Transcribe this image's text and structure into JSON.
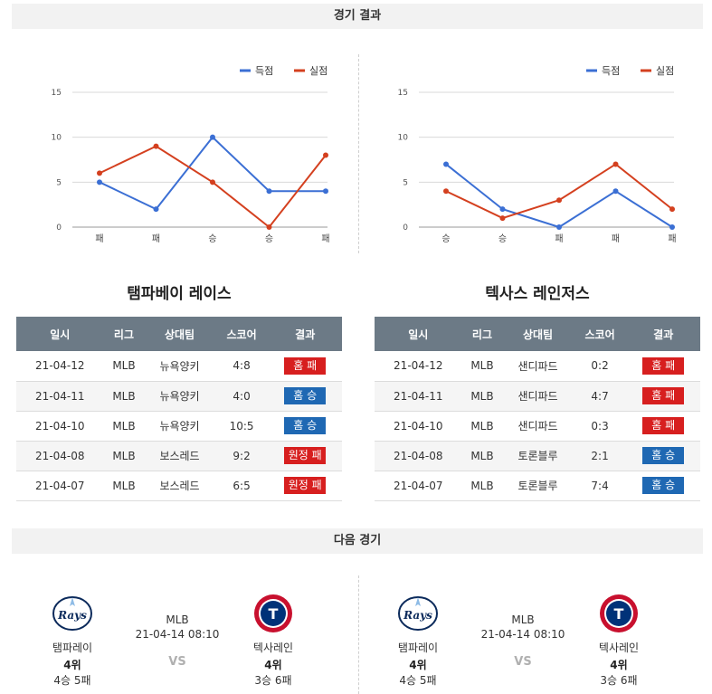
{
  "sections": {
    "results_title": "경기 결과",
    "next_title": "다음 경기"
  },
  "legend": {
    "scored": "득점",
    "allowed": "실점"
  },
  "colors": {
    "scored": "#3b6fd4",
    "allowed": "#d4401f",
    "win": "#1f68b3",
    "loss": "#d71f1f",
    "header": "#6c7a86"
  },
  "chart_data": [
    {
      "type": "line",
      "categories": [
        "패",
        "패",
        "승",
        "승",
        "패"
      ],
      "ylim": [
        0,
        15
      ],
      "yticks": [
        0,
        5,
        10,
        15
      ],
      "grid": true,
      "legend_position": "top-right",
      "series": [
        {
          "name": "득점",
          "values": [
            5,
            2,
            10,
            4,
            4
          ]
        },
        {
          "name": "실점",
          "values": [
            6,
            9,
            5,
            0,
            8
          ]
        }
      ]
    },
    {
      "type": "line",
      "categories": [
        "승",
        "승",
        "패",
        "패",
        "패"
      ],
      "ylim": [
        0,
        15
      ],
      "yticks": [
        0,
        5,
        10,
        15
      ],
      "grid": true,
      "legend_position": "top-right",
      "series": [
        {
          "name": "득점",
          "values": [
            7,
            2,
            0,
            4,
            0
          ]
        },
        {
          "name": "실점",
          "values": [
            4,
            1,
            3,
            7,
            2
          ]
        }
      ]
    }
  ],
  "table_headers": [
    "일시",
    "리그",
    "상대팀",
    "스코어",
    "결과"
  ],
  "teams": [
    {
      "title": "탬파베이 레이스",
      "rows": [
        {
          "date": "21-04-12",
          "league": "MLB",
          "opponent": "뉴욕양키",
          "score": "4:8",
          "result": "홈 패",
          "win": false
        },
        {
          "date": "21-04-11",
          "league": "MLB",
          "opponent": "뉴욕양키",
          "score": "4:0",
          "result": "홈 승",
          "win": true
        },
        {
          "date": "21-04-10",
          "league": "MLB",
          "opponent": "뉴욕양키",
          "score": "10:5",
          "result": "홈 승",
          "win": true
        },
        {
          "date": "21-04-08",
          "league": "MLB",
          "opponent": "보스레드",
          "score": "9:2",
          "result": "원정 패",
          "win": false
        },
        {
          "date": "21-04-07",
          "league": "MLB",
          "opponent": "보스레드",
          "score": "6:5",
          "result": "원정 패",
          "win": false
        }
      ]
    },
    {
      "title": "텍사스 레인저스",
      "rows": [
        {
          "date": "21-04-12",
          "league": "MLB",
          "opponent": "샌디파드",
          "score": "0:2",
          "result": "홈 패",
          "win": false
        },
        {
          "date": "21-04-11",
          "league": "MLB",
          "opponent": "샌디파드",
          "score": "4:7",
          "result": "홈 패",
          "win": false
        },
        {
          "date": "21-04-10",
          "league": "MLB",
          "opponent": "샌디파드",
          "score": "0:3",
          "result": "홈 패",
          "win": false
        },
        {
          "date": "21-04-08",
          "league": "MLB",
          "opponent": "토론블루",
          "score": "2:1",
          "result": "홈 승",
          "win": true
        },
        {
          "date": "21-04-07",
          "league": "MLB",
          "opponent": "토론블루",
          "score": "7:4",
          "result": "홈 승",
          "win": true
        }
      ]
    }
  ],
  "next_games": [
    {
      "league": "MLB",
      "datetime": "21-04-14 08:10",
      "vs": "VS",
      "home": {
        "name": "탬파레이",
        "rank": "4위",
        "record": "4승 5패",
        "logo_icon": "rays-logo-icon",
        "logo_text": "Rays"
      },
      "away": {
        "name": "텍사레인",
        "rank": "4위",
        "record": "3승 6패",
        "logo_icon": "rangers-logo-icon",
        "logo_text": "T"
      }
    },
    {
      "league": "MLB",
      "datetime": "21-04-14 08:10",
      "vs": "VS",
      "home": {
        "name": "탬파레이",
        "rank": "4위",
        "record": "4승 5패",
        "logo_icon": "rays-logo-icon",
        "logo_text": "Rays"
      },
      "away": {
        "name": "텍사레인",
        "rank": "4위",
        "record": "3승 6패",
        "logo_icon": "rangers-logo-icon",
        "logo_text": "T"
      }
    }
  ]
}
